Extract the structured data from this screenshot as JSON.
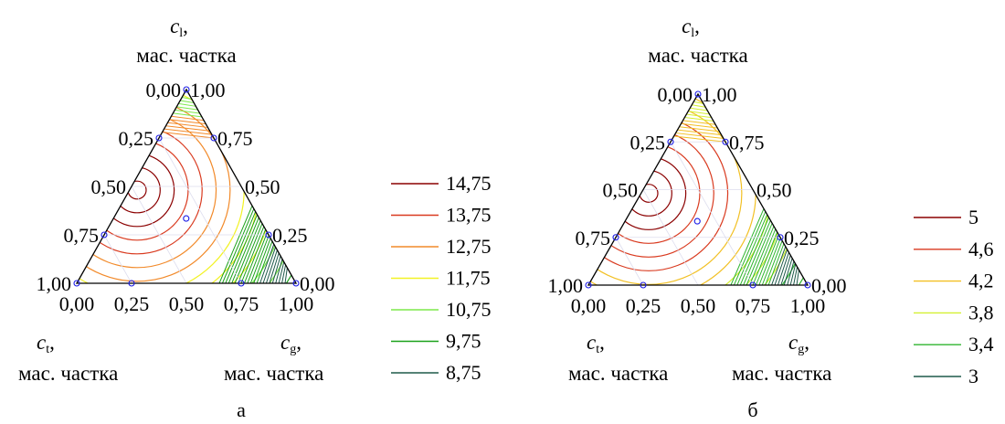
{
  "chart_data": [
    {
      "type": "ternary-contour",
      "caption": "а",
      "axes": {
        "top": {
          "symbol": "c",
          "subscript": "l",
          "unit": "мас. частка"
        },
        "left": {
          "symbol": "c",
          "subscript": "t",
          "unit": "мас. частка"
        },
        "right": {
          "symbol": "c",
          "subscript": "g",
          "unit": "мас. частка"
        }
      },
      "ticks": {
        "left_edge": [
          "0,00",
          "0,25",
          "0,50",
          "0,75",
          "1,00"
        ],
        "right_edge": [
          "1,00",
          "0,75",
          "0,50",
          "0,25",
          "0,00"
        ],
        "bottom_edge": [
          "0,00",
          "0,25",
          "0,50",
          "0,75",
          "1,00"
        ]
      },
      "legend": [
        {
          "label": "14,75",
          "color": "#8b0000"
        },
        {
          "label": "13,75",
          "color": "#d93a1f"
        },
        {
          "label": "12,75",
          "color": "#f28a2a"
        },
        {
          "label": "11,75",
          "color": "#f2f224"
        },
        {
          "label": "10,75",
          "color": "#7de84a"
        },
        {
          "label": "9,75",
          "color": "#1aa11a"
        },
        {
          "label": "8,75",
          "color": "#1e5a4a"
        }
      ],
      "design_points": [
        {
          "cl": 1.0,
          "ct": 0.0,
          "cg": 0.0
        },
        {
          "cl": 0.75,
          "ct": 0.25,
          "cg": 0.0
        },
        {
          "cl": 0.75,
          "ct": 0.0,
          "cg": 0.25
        },
        {
          "cl": 0.333,
          "ct": 0.333,
          "cg": 0.333
        },
        {
          "cl": 0.25,
          "ct": 0.75,
          "cg": 0.0
        },
        {
          "cl": 0.25,
          "ct": 0.0,
          "cg": 0.75
        },
        {
          "cl": 0.0,
          "ct": 1.0,
          "cg": 0.0
        },
        {
          "cl": 0.0,
          "ct": 0.75,
          "cg": 0.25
        },
        {
          "cl": 0.0,
          "ct": 0.25,
          "cg": 0.75
        },
        {
          "cl": 0.0,
          "ct": 0.0,
          "cg": 1.0
        }
      ]
    },
    {
      "type": "ternary-contour",
      "caption": "б",
      "axes": {
        "top": {
          "symbol": "c",
          "subscript": "l",
          "unit": "мас. частка"
        },
        "left": {
          "symbol": "c",
          "subscript": "t",
          "unit": "мас. частка"
        },
        "right": {
          "symbol": "c",
          "subscript": "g",
          "unit": "мас. частка"
        }
      },
      "ticks": {
        "left_edge": [
          "0,00",
          "0,25",
          "0,50",
          "0,75",
          "1,00"
        ],
        "right_edge": [
          "1,00",
          "0,75",
          "0,50",
          "0,25",
          "0,00"
        ],
        "bottom_edge": [
          "0,00",
          "0,25",
          "0,50",
          "0,75",
          "1,00"
        ]
      },
      "legend": [
        {
          "label": "5",
          "color": "#8b0000"
        },
        {
          "label": "4,6",
          "color": "#d93a1f"
        },
        {
          "label": "4,2",
          "color": "#f2c024"
        },
        {
          "label": "3,8",
          "color": "#d4f032"
        },
        {
          "label": "3,4",
          "color": "#2fb52f"
        },
        {
          "label": "3",
          "color": "#1e5a4a"
        }
      ],
      "design_points": [
        {
          "cl": 1.0,
          "ct": 0.0,
          "cg": 0.0
        },
        {
          "cl": 0.75,
          "ct": 0.25,
          "cg": 0.0
        },
        {
          "cl": 0.75,
          "ct": 0.0,
          "cg": 0.25
        },
        {
          "cl": 0.333,
          "ct": 0.333,
          "cg": 0.333
        },
        {
          "cl": 0.25,
          "ct": 0.75,
          "cg": 0.0
        },
        {
          "cl": 0.25,
          "ct": 0.0,
          "cg": 0.75
        },
        {
          "cl": 0.0,
          "ct": 1.0,
          "cg": 0.0
        },
        {
          "cl": 0.0,
          "ct": 0.75,
          "cg": 0.25
        },
        {
          "cl": 0.0,
          "ct": 0.25,
          "cg": 0.75
        },
        {
          "cl": 0.0,
          "ct": 0.0,
          "cg": 1.0
        }
      ]
    }
  ]
}
